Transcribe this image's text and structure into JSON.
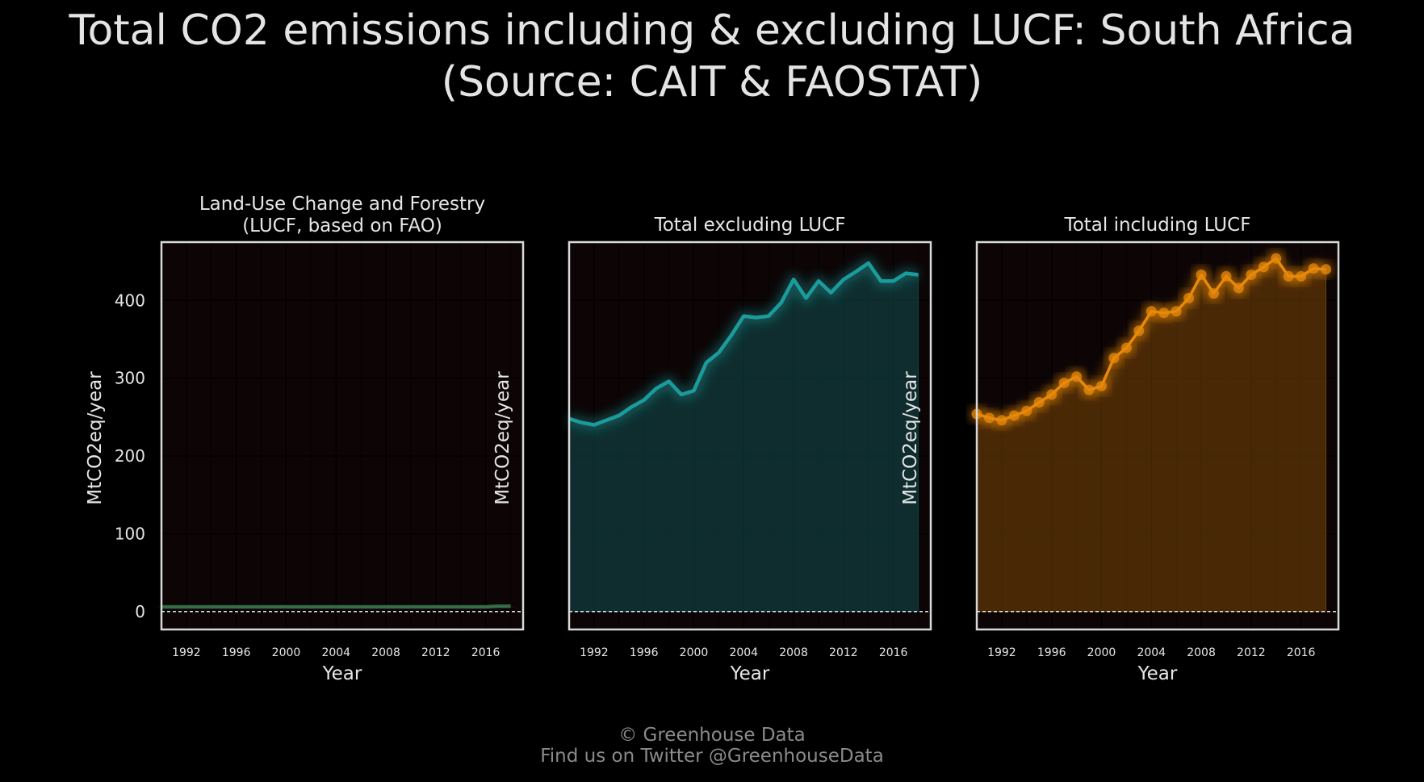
{
  "title": {
    "line1": "Total CO2 emissions including & excluding LUCF: South Africa",
    "line2": "(Source: CAIT & FAOSTAT)"
  },
  "footer": {
    "line1": "© Greenhouse Data",
    "line2": "Find us on Twitter @GreenhouseData"
  },
  "colors": {
    "background": "#000000",
    "plot_background": "#0c0405",
    "frame": "#d9d9d9",
    "lucf": "#3f8a55",
    "excl": "#1a9c9c",
    "incl": "#e8890c",
    "zero_line": "#ffffff"
  },
  "chart_data": [
    {
      "type": "line",
      "title": "Land-Use Change and Forestry\n(LUCF, based on FAO)",
      "xlabel": "Year",
      "ylabel": "MtCO2eq/year",
      "xticks": [
        "1992",
        "1996",
        "2000",
        "2004",
        "2008",
        "2012",
        "2016"
      ],
      "yticks": [
        "0",
        "100",
        "200",
        "300",
        "400"
      ],
      "xlim": [
        1990,
        2019
      ],
      "ylim": [
        -23,
        475
      ],
      "grid": true,
      "area": false,
      "markers": false,
      "color_key": "lucf",
      "x": [
        1990,
        1991,
        1992,
        1993,
        1994,
        1995,
        1996,
        1997,
        1998,
        1999,
        2000,
        2001,
        2002,
        2003,
        2004,
        2005,
        2006,
        2007,
        2008,
        2009,
        2010,
        2011,
        2012,
        2013,
        2014,
        2015,
        2016,
        2017,
        2018
      ],
      "values": [
        6,
        6,
        6,
        6,
        6,
        6,
        6,
        6,
        6,
        6,
        6,
        6,
        6,
        6,
        6,
        6,
        6,
        6,
        6,
        6,
        6,
        6,
        6,
        6,
        6,
        6,
        6,
        7,
        7
      ]
    },
    {
      "type": "area",
      "title": "Total excluding LUCF",
      "xlabel": "Year",
      "ylabel": "MtCO2eq/year",
      "xticks": [
        "1992",
        "1996",
        "2000",
        "2004",
        "2008",
        "2012",
        "2016"
      ],
      "yticks": [],
      "xlim": [
        1990,
        2019
      ],
      "ylim": [
        -23,
        475
      ],
      "grid": true,
      "area": true,
      "markers": false,
      "color_key": "excl",
      "x": [
        1990,
        1991,
        1992,
        1993,
        1994,
        1995,
        1996,
        1997,
        1998,
        1999,
        2000,
        2001,
        2002,
        2003,
        2004,
        2005,
        2006,
        2007,
        2008,
        2009,
        2010,
        2011,
        2012,
        2013,
        2014,
        2015,
        2016,
        2017,
        2018
      ],
      "values": [
        248,
        243,
        240,
        246,
        252,
        263,
        272,
        287,
        296,
        279,
        284,
        320,
        333,
        355,
        380,
        378,
        380,
        397,
        427,
        403,
        425,
        410,
        427,
        437,
        448,
        425,
        425,
        435,
        433
      ]
    },
    {
      "type": "area",
      "title": "Total including LUCF",
      "xlabel": "Year",
      "ylabel": "MtCO2eq/year",
      "xticks": [
        "1992",
        "1996",
        "2000",
        "2004",
        "2008",
        "2012",
        "2016"
      ],
      "yticks": [],
      "xlim": [
        1990,
        2019
      ],
      "ylim": [
        -23,
        475
      ],
      "grid": true,
      "area": true,
      "markers": true,
      "color_key": "incl",
      "x": [
        1990,
        1991,
        1992,
        1993,
        1994,
        1995,
        1996,
        1997,
        1998,
        1999,
        2000,
        2001,
        2002,
        2003,
        2004,
        2005,
        2006,
        2007,
        2008,
        2009,
        2010,
        2011,
        2012,
        2013,
        2014,
        2015,
        2016,
        2017,
        2018
      ],
      "values": [
        254,
        249,
        246,
        252,
        258,
        269,
        279,
        294,
        302,
        285,
        290,
        326,
        339,
        361,
        386,
        384,
        386,
        403,
        433,
        409,
        431,
        416,
        433,
        443,
        454,
        431,
        431,
        441,
        440
      ]
    }
  ]
}
